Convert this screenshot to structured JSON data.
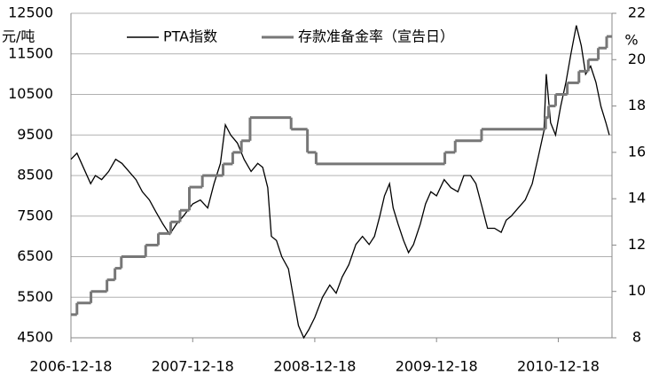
{
  "chart_data": {
    "type": "line",
    "y_label": "元/吨",
    "y2_label": "%",
    "xlim": [
      "2006-12-18",
      "2011-05-28"
    ],
    "xticks": [
      "2006-12-18",
      "2007-12-18",
      "2008-12-18",
      "2009-12-18",
      "2010-12-18"
    ],
    "ylim": [
      4500,
      12500
    ],
    "yticks": [
      4500,
      5500,
      6500,
      7500,
      8500,
      9500,
      10500,
      11500,
      12500
    ],
    "y2lim": [
      8,
      22
    ],
    "y2ticks": [
      8,
      10,
      12,
      14,
      16,
      18,
      20,
      22
    ],
    "grid": true,
    "legend": "top",
    "series": [
      {
        "name": "PTA指数",
        "color": "#000000",
        "x": [
          "2006-12-18",
          "2007-01-05",
          "2007-02-15",
          "2007-03-01",
          "2007-03-20",
          "2007-04-10",
          "2007-05-01",
          "2007-05-20",
          "2007-06-10",
          "2007-07-01",
          "2007-07-20",
          "2007-08-10",
          "2007-08-30",
          "2007-09-20",
          "2007-10-10",
          "2007-10-30",
          "2007-11-20",
          "2007-12-18",
          "2008-01-10",
          "2008-02-01",
          "2008-02-20",
          "2008-03-10",
          "2008-03-25",
          "2008-04-10",
          "2008-04-30",
          "2008-05-20",
          "2008-06-10",
          "2008-06-30",
          "2008-07-15",
          "2008-07-30",
          "2008-08-10",
          "2008-08-25",
          "2008-09-10",
          "2008-09-30",
          "2008-10-15",
          "2008-10-30",
          "2008-11-15",
          "2008-11-30",
          "2008-12-18",
          "2009-01-10",
          "2009-02-01",
          "2009-02-20",
          "2009-03-10",
          "2009-03-30",
          "2009-04-20",
          "2009-05-10",
          "2009-05-30",
          "2009-06-15",
          "2009-07-01",
          "2009-07-15",
          "2009-07-30",
          "2009-08-10",
          "2009-08-25",
          "2009-09-10",
          "2009-09-25",
          "2009-10-10",
          "2009-10-30",
          "2009-11-15",
          "2009-12-01",
          "2009-12-18",
          "2010-01-10",
          "2010-01-30",
          "2010-02-20",
          "2010-03-10",
          "2010-03-30",
          "2010-04-15",
          "2010-05-01",
          "2010-05-20",
          "2010-06-10",
          "2010-06-30",
          "2010-07-15",
          "2010-07-30",
          "2010-08-20",
          "2010-09-10",
          "2010-10-01",
          "2010-10-20",
          "2010-11-05",
          "2010-11-12",
          "2010-11-25",
          "2010-12-10",
          "2010-12-25",
          "2011-01-10",
          "2011-01-25",
          "2011-02-10",
          "2011-02-25",
          "2011-03-10",
          "2011-03-25",
          "2011-04-10",
          "2011-04-25",
          "2011-05-10",
          "2011-05-20"
        ],
        "values": [
          8900,
          9050,
          8300,
          8500,
          8400,
          8600,
          8900,
          8800,
          8600,
          8400,
          8100,
          7900,
          7600,
          7300,
          7050,
          7300,
          7500,
          7800,
          7900,
          7700,
          8300,
          8800,
          9750,
          9500,
          9300,
          8900,
          8600,
          8800,
          8700,
          8200,
          7000,
          6900,
          6500,
          6200,
          5500,
          4800,
          4500,
          4700,
          5000,
          5500,
          5800,
          5600,
          6000,
          6300,
          6800,
          7000,
          6800,
          7000,
          7500,
          8000,
          8300,
          7700,
          7300,
          6900,
          6600,
          6800,
          7300,
          7800,
          8100,
          8000,
          8400,
          8200,
          8100,
          8500,
          8500,
          8300,
          7800,
          7200,
          7200,
          7100,
          7400,
          7500,
          7700,
          7900,
          8300,
          9000,
          9600,
          11000,
          9800,
          9500,
          10200,
          10800,
          11500,
          12200,
          11700,
          11000,
          11200,
          10800,
          10200,
          9800,
          9500
        ]
      },
      {
        "name": "存款准备金率（宣告日）",
        "color": "#777777",
        "axis": "y2",
        "drawstyle": "steps-post",
        "x": [
          "2006-12-18",
          "2007-01-05",
          "2007-02-16",
          "2007-04-05",
          "2007-04-29",
          "2007-05-18",
          "2007-07-30",
          "2007-09-06",
          "2007-10-13",
          "2007-11-10",
          "2007-12-08",
          "2008-01-16",
          "2008-03-18",
          "2008-04-16",
          "2008-05-12",
          "2008-06-07",
          "2008-10-08",
          "2008-11-26",
          "2008-12-22",
          "2010-01-12",
          "2010-02-12",
          "2010-05-02",
          "2010-11-10",
          "2010-11-19",
          "2010-12-10",
          "2011-01-14",
          "2011-02-18",
          "2011-03-18",
          "2011-04-17",
          "2011-05-12"
        ],
        "values": [
          9,
          9.5,
          10,
          10.5,
          11,
          11.5,
          12,
          12.5,
          13,
          13.5,
          14.5,
          15,
          15.5,
          16,
          16.5,
          17.5,
          17,
          16,
          15.5,
          16,
          16.5,
          17,
          17.5,
          18,
          18.5,
          19,
          19.5,
          20,
          20.5,
          21
        ]
      }
    ]
  }
}
